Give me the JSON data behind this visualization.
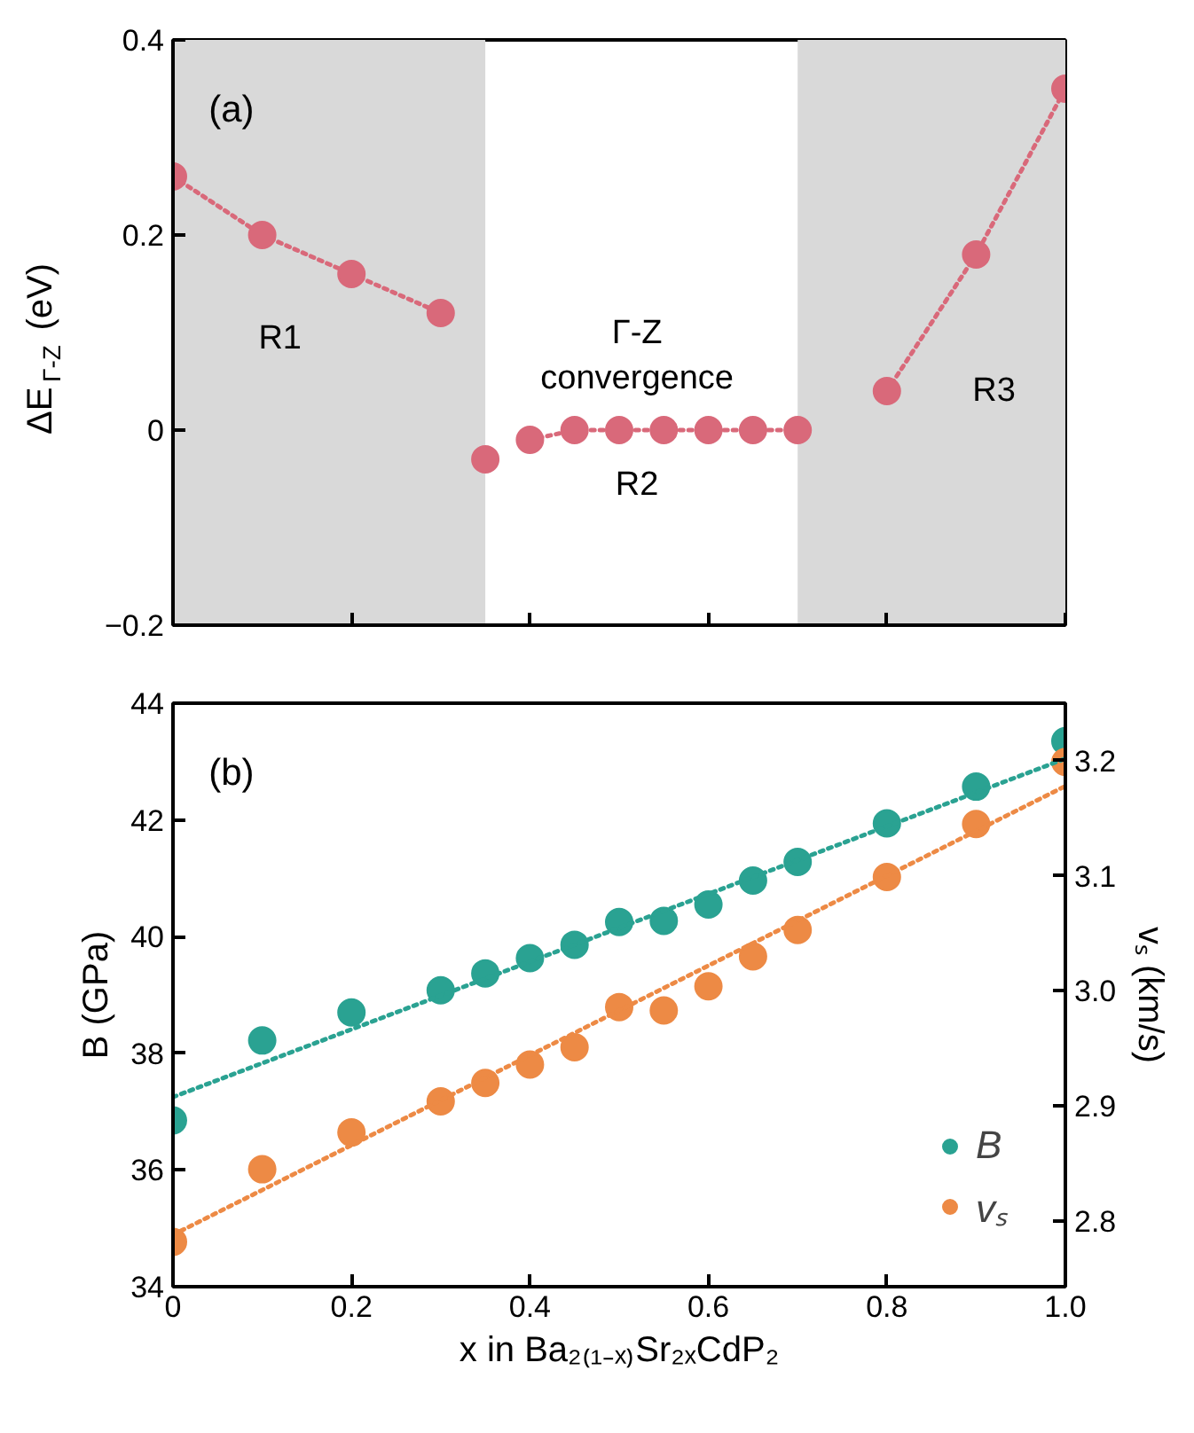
{
  "chart_data": [
    {
      "type": "line",
      "ylabel": "ΔE$_{Γ-Z}$ (eV)",
      "xlim": [
        0,
        1
      ],
      "ylim": [
        -0.2,
        0.4
      ],
      "xticks": [
        0,
        0.2,
        0.4,
        0.6,
        0.8,
        1.0
      ],
      "yticks": [
        {
          "value": -0.2,
          "label": "−0.2"
        },
        0,
        0.2,
        0.4
      ],
      "tick_labels": "y",
      "marker": "circle",
      "line_style": "dotted",
      "bands": [
        {
          "axis": "x",
          "from": 0,
          "to": 0.35,
          "color": "#d9d9d9"
        },
        {
          "axis": "x",
          "from": 0.7,
          "to": 1.0,
          "color": "#d9d9d9"
        }
      ],
      "annotations": [
        "(a)",
        "R1",
        "Γ-Z\nconvergence",
        "R2",
        "R3"
      ],
      "series": [
        {
          "color": "#d9697a",
          "x": [
            0,
            0.1,
            0.2,
            0.3
          ],
          "values": [
            0.26,
            0.2,
            0.16,
            0.12
          ]
        },
        {
          "color": "#d9697a",
          "type": "scatter",
          "x": [
            0.35
          ],
          "values": [
            -0.03
          ]
        },
        {
          "color": "#d9697a",
          "x": [
            0.4,
            0.45,
            0.5,
            0.55,
            0.6,
            0.65,
            0.7
          ],
          "values": [
            -0.01,
            0,
            0,
            0,
            0,
            0,
            0
          ]
        },
        {
          "color": "#d9697a",
          "x": [
            0.8,
            0.9,
            1.0
          ],
          "values": [
            0.04,
            0.18,
            0.35
          ]
        }
      ]
    },
    {
      "type": "scatter",
      "xlabel": "x in Ba₂₍₁₋ₓ₎Sr₂ₓCdP₂",
      "ylabel": "B (GPa)",
      "y2label": "vₛ (km/s)",
      "xlim": [
        0,
        1
      ],
      "ylim": [
        34,
        44
      ],
      "y2lim": [
        2.743,
        3.25
      ],
      "xticks": [
        0,
        0.2,
        0.4,
        0.6,
        0.8,
        {
          "value": 1,
          "label": "1.0"
        }
      ],
      "yticks": [
        34,
        36,
        38,
        40,
        42,
        44
      ],
      "y2ticks": [
        2.8,
        2.9,
        {
          "value": 3,
          "label": "3.0"
        },
        3.1,
        3.2
      ],
      "marker": "circle",
      "legend": "bottom right",
      "annotations": [
        "(b)"
      ],
      "x": [
        0,
        0.1,
        0.2,
        0.3,
        0.35,
        0.4,
        0.45,
        0.5,
        0.55,
        0.6,
        0.65,
        0.7,
        0.8,
        0.9,
        1.0
      ],
      "series": [
        {
          "name": "B",
          "color": "#2aa292",
          "values": [
            36.85,
            38.22,
            38.7,
            39.08,
            39.37,
            39.63,
            39.86,
            40.25,
            40.27,
            40.55,
            40.96,
            41.28,
            41.94,
            42.57,
            43.35
          ]
        },
        {
          "name": "vₛ",
          "color": "#ed8a45",
          "axis": "y2",
          "values": [
            2.782,
            2.845,
            2.877,
            2.904,
            2.92,
            2.936,
            2.951,
            2.986,
            2.983,
            3.004,
            3.03,
            3.053,
            3.099,
            3.145,
            3.199
          ]
        },
        {
          "type": "line",
          "color": "#2aa292",
          "line_style": "dotted",
          "marker": "none",
          "x": [
            0,
            1
          ],
          "values": [
            37.25,
            43.05
          ]
        },
        {
          "type": "line",
          "color": "#ed8a45",
          "line_style": "dotted",
          "marker": "none",
          "axis": "y2",
          "x": [
            0,
            1
          ],
          "values": [
            2.788,
            3.178
          ]
        }
      ]
    }
  ]
}
